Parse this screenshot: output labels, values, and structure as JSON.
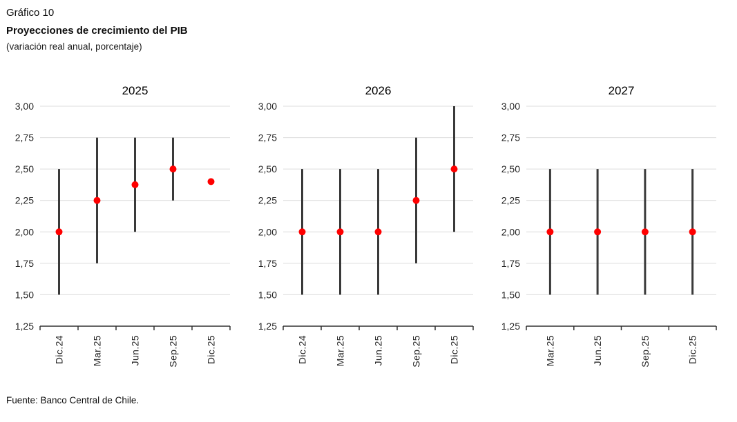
{
  "header": {
    "figure_label": "Gráfico 10",
    "title": "Proyecciones de crecimiento del PIB",
    "subtitle": "(variación real anual, porcentaje)"
  },
  "footer": {
    "source": "Fuente: Banco Central de Chile."
  },
  "colors": {
    "point": "#ff0000",
    "bar": "#3a3a3a",
    "gridline": "#dcdcdc",
    "axis": "#333333",
    "tick_text": "#262626"
  },
  "axis": {
    "min": 1.25,
    "max": 3.0,
    "step": 0.25,
    "ticks": [
      {
        "value": 3.0,
        "label": "3,00"
      },
      {
        "value": 2.75,
        "label": "2,75"
      },
      {
        "value": 2.5,
        "label": "2,50"
      },
      {
        "value": 2.25,
        "label": "2,25"
      },
      {
        "value": 2.0,
        "label": "2,00"
      },
      {
        "value": 1.75,
        "label": "1,75"
      },
      {
        "value": 1.5,
        "label": "1,50"
      },
      {
        "value": 1.25,
        "label": "1,25"
      }
    ]
  },
  "chart_data": [
    {
      "type": "scatter",
      "style": "range-bar-with-dot",
      "title": "2025",
      "ylim": [
        1.25,
        3.0
      ],
      "grid": true,
      "legend": false,
      "categories": [
        "Dic.24",
        "Mar.25",
        "Jun.25",
        "Sep.25",
        "Dic.25"
      ],
      "series": [
        {
          "category": "Dic.24",
          "range": [
            1.5,
            2.5
          ],
          "point": 2.0
        },
        {
          "category": "Mar.25",
          "range": [
            1.75,
            2.75
          ],
          "point": 2.25
        },
        {
          "category": "Jun.25",
          "range": [
            2.0,
            2.75
          ],
          "point": 2.375
        },
        {
          "category": "Sep.25",
          "range": [
            2.25,
            2.75
          ],
          "point": 2.5
        },
        {
          "category": "Dic.25",
          "range": null,
          "point": 2.4
        }
      ]
    },
    {
      "type": "scatter",
      "style": "range-bar-with-dot",
      "title": "2026",
      "ylim": [
        1.25,
        3.0
      ],
      "grid": true,
      "legend": false,
      "categories": [
        "Dic.24",
        "Mar.25",
        "Jun.25",
        "Sep.25",
        "Dic.25"
      ],
      "series": [
        {
          "category": "Dic.24",
          "range": [
            1.5,
            2.5
          ],
          "point": 2.0
        },
        {
          "category": "Mar.25",
          "range": [
            1.5,
            2.5
          ],
          "point": 2.0
        },
        {
          "category": "Jun.25",
          "range": [
            1.5,
            2.5
          ],
          "point": 2.0
        },
        {
          "category": "Sep.25",
          "range": [
            1.75,
            2.75
          ],
          "point": 2.25
        },
        {
          "category": "Dic.25",
          "range": [
            2.0,
            3.0
          ],
          "point": 2.5
        }
      ]
    },
    {
      "type": "scatter",
      "style": "range-bar-with-dot",
      "title": "2027",
      "ylim": [
        1.25,
        3.0
      ],
      "grid": true,
      "legend": false,
      "categories": [
        "Mar.25",
        "Jun.25",
        "Sep.25",
        "Dic.25"
      ],
      "series": [
        {
          "category": "Mar.25",
          "range": [
            1.5,
            2.5
          ],
          "point": 2.0
        },
        {
          "category": "Jun.25",
          "range": [
            1.5,
            2.5
          ],
          "point": 2.0
        },
        {
          "category": "Sep.25",
          "range": [
            1.5,
            2.5
          ],
          "point": 2.0
        },
        {
          "category": "Dic.25",
          "range": [
            1.5,
            2.5
          ],
          "point": 2.0
        }
      ]
    }
  ]
}
